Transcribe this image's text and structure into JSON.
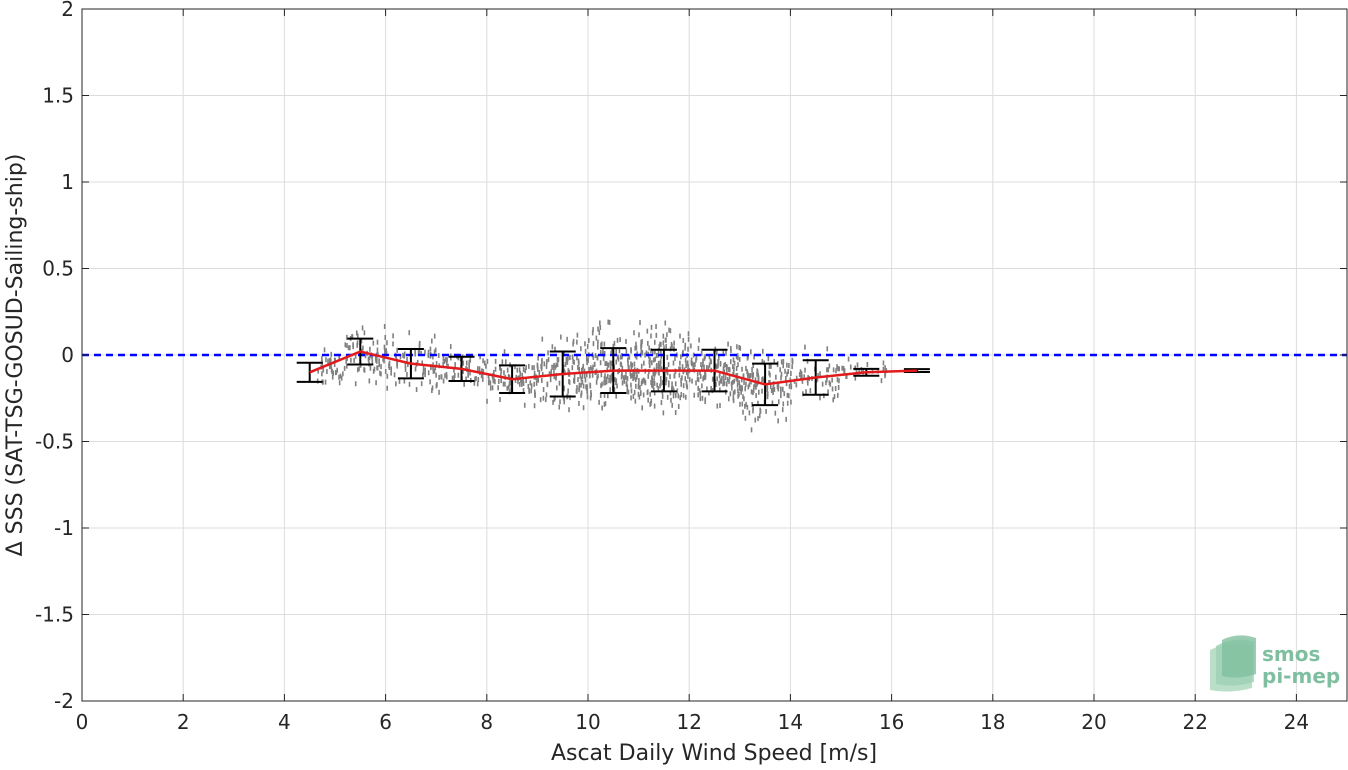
{
  "chart_data": {
    "type": "scatter",
    "xlabel": "Ascat Daily Wind Speed [m/s]",
    "ylabel": "Δ SSS (SAT-TSG-GOSUD-Sailing-ship)",
    "xlim": [
      0,
      25
    ],
    "ylim": [
      -2,
      2
    ],
    "x_ticks": [
      0,
      2,
      4,
      6,
      8,
      10,
      12,
      14,
      16,
      18,
      20,
      22,
      24
    ],
    "y_ticks": [
      2,
      1.5,
      1,
      0.5,
      0,
      -0.5,
      -1,
      -1.5,
      -2
    ],
    "x_tick_labels": [
      "0",
      "2",
      "4",
      "6",
      "8",
      "10",
      "12",
      "14",
      "16",
      "18",
      "20",
      "22",
      "24"
    ],
    "y_tick_labels": [
      "2",
      "1.5",
      "1",
      "0.5",
      "0",
      "-0.5",
      "-1",
      "-1.5",
      "-2"
    ],
    "grid": true,
    "reference_line": {
      "y": 0,
      "style": "dashed",
      "color": "#0000ff"
    },
    "scatter_color": "#808080",
    "mean_line_color": "#e31a1c",
    "errorbar_color": "#000000",
    "binned": {
      "x": [
        4.5,
        5.5,
        6.5,
        7.5,
        8.5,
        9.5,
        10.5,
        11.5,
        12.5,
        13.5,
        14.5,
        15.5,
        16.5
      ],
      "mean": [
        -0.1,
        0.02,
        -0.05,
        -0.08,
        -0.14,
        -0.11,
        -0.09,
        -0.09,
        -0.09,
        -0.17,
        -0.13,
        -0.1,
        -0.09
      ],
      "std": [
        0.055,
        0.075,
        0.085,
        0.07,
        0.08,
        0.13,
        0.13,
        0.12,
        0.12,
        0.12,
        0.1,
        0.02,
        0.008
      ]
    },
    "scatter_clusters": [
      {
        "x": [
          4.6,
          5.2
        ],
        "y_mean": -0.08,
        "y_spread": 0.08,
        "n": 40
      },
      {
        "x": [
          5.2,
          6.0
        ],
        "y_mean": 0.0,
        "y_spread": 0.12,
        "n": 70
      },
      {
        "x": [
          6.0,
          7.0
        ],
        "y_mean": -0.04,
        "y_spread": 0.12,
        "n": 80
      },
      {
        "x": [
          7.0,
          8.0
        ],
        "y_mean": -0.08,
        "y_spread": 0.1,
        "n": 70
      },
      {
        "x": [
          8.0,
          9.0
        ],
        "y_mean": -0.14,
        "y_spread": 0.1,
        "n": 90
      },
      {
        "x": [
          9.0,
          10.0
        ],
        "y_mean": -0.11,
        "y_spread": 0.16,
        "n": 140
      },
      {
        "x": [
          10.0,
          11.0
        ],
        "y_mean": -0.08,
        "y_spread": 0.18,
        "n": 180
      },
      {
        "x": [
          11.0,
          12.0
        ],
        "y_mean": -0.08,
        "y_spread": 0.18,
        "n": 200
      },
      {
        "x": [
          12.0,
          13.0
        ],
        "y_mean": -0.1,
        "y_spread": 0.16,
        "n": 150
      },
      {
        "x": [
          13.0,
          14.0
        ],
        "y_mean": -0.18,
        "y_spread": 0.16,
        "n": 140
      },
      {
        "x": [
          14.0,
          15.0
        ],
        "y_mean": -0.13,
        "y_spread": 0.1,
        "n": 60
      },
      {
        "x": [
          15.0,
          15.9
        ],
        "y_mean": -0.1,
        "y_spread": 0.05,
        "n": 25
      }
    ]
  },
  "logo": {
    "line1": "smos",
    "line2": "pi-mep"
  }
}
